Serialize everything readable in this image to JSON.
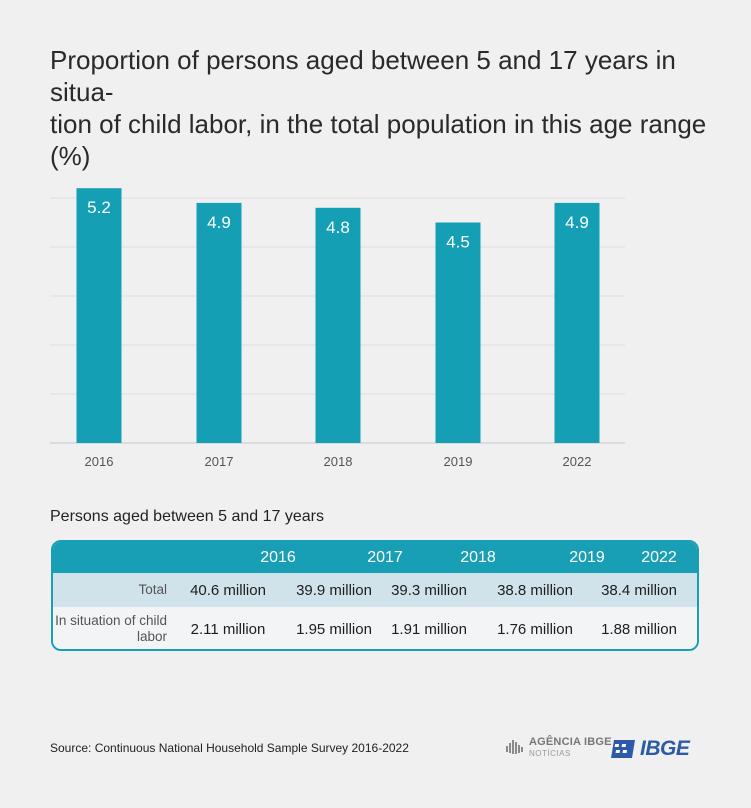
{
  "title": "Proportion of persons aged between 5 and 17 years in situa-tion of child labor, in the total population in this age range (%)",
  "colors": {
    "bar": "#149fb5",
    "header": "#189fb5",
    "total_row": "#d0e3ea",
    "ibge_blue": "#2d5aa8"
  },
  "chart_data": {
    "type": "bar",
    "categories": [
      "2016",
      "2017",
      "2018",
      "2019",
      "2022"
    ],
    "values": [
      5.2,
      4.9,
      4.8,
      4.5,
      4.9
    ],
    "value_labels": [
      "5.2",
      "4.9",
      "4.8",
      "4.5",
      "4.9"
    ],
    "ylim": [
      0,
      5.0
    ],
    "grid": true
  },
  "table": {
    "caption": "Persons aged between 5 and 17 years",
    "columns": [
      "2016",
      "2017",
      "2018",
      "2019",
      "2022"
    ],
    "rows": [
      {
        "label": "Total",
        "values": [
          "40.6 million",
          "39.9 million",
          "39.3 million",
          "38.8 million",
          "38.4 million"
        ]
      },
      {
        "label": "In situation of child labor",
        "values": [
          "2.11 million",
          "1.95 million",
          "1.91 million",
          "1.76 million",
          "1.88 million"
        ]
      }
    ]
  },
  "source": "Source: Continuous National Household Sample Survey 2016-2022",
  "logos": {
    "agencia_line1": "AGÊNCIA IBGE",
    "agencia_line2": "NOTÍCIAS",
    "ibge": "IBGE"
  }
}
